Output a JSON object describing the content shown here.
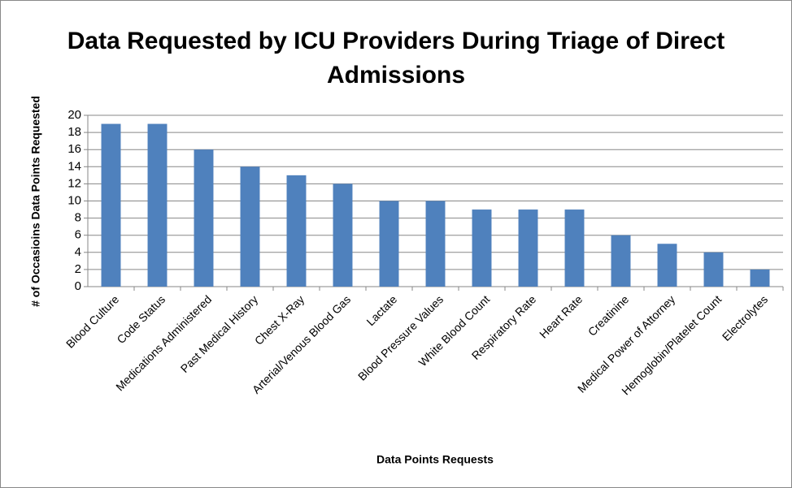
{
  "chart_data": {
    "type": "bar",
    "title": "Data Requested by ICU Providers During Triage of Direct Admissions",
    "x_label": "Data Points Requests",
    "y_label": "# of Occasioins Data Points Requested",
    "categories": [
      "Blood Culture",
      "Code Status",
      "Medications Administered",
      "Past Medical History",
      "Chest X-Ray",
      "Arterial/Venous Blood Gas",
      "Lactate",
      "Blood Pressure Values",
      "White Blood Count",
      "Respiratory Rate",
      "Heart Rate",
      "Creatinine",
      "Medical Power of Attorney",
      "Hemoglobin/Platelet Count",
      "Electrolytes"
    ],
    "values": [
      19,
      19,
      16,
      14,
      13,
      12,
      10,
      10,
      9,
      9,
      9,
      6,
      5,
      4,
      2
    ],
    "color": "#4f81bd",
    "ylim": [
      0,
      20
    ],
    "yticks": [
      0,
      2,
      4,
      6,
      8,
      10,
      12,
      14,
      16,
      18,
      20
    ],
    "grid": true
  }
}
